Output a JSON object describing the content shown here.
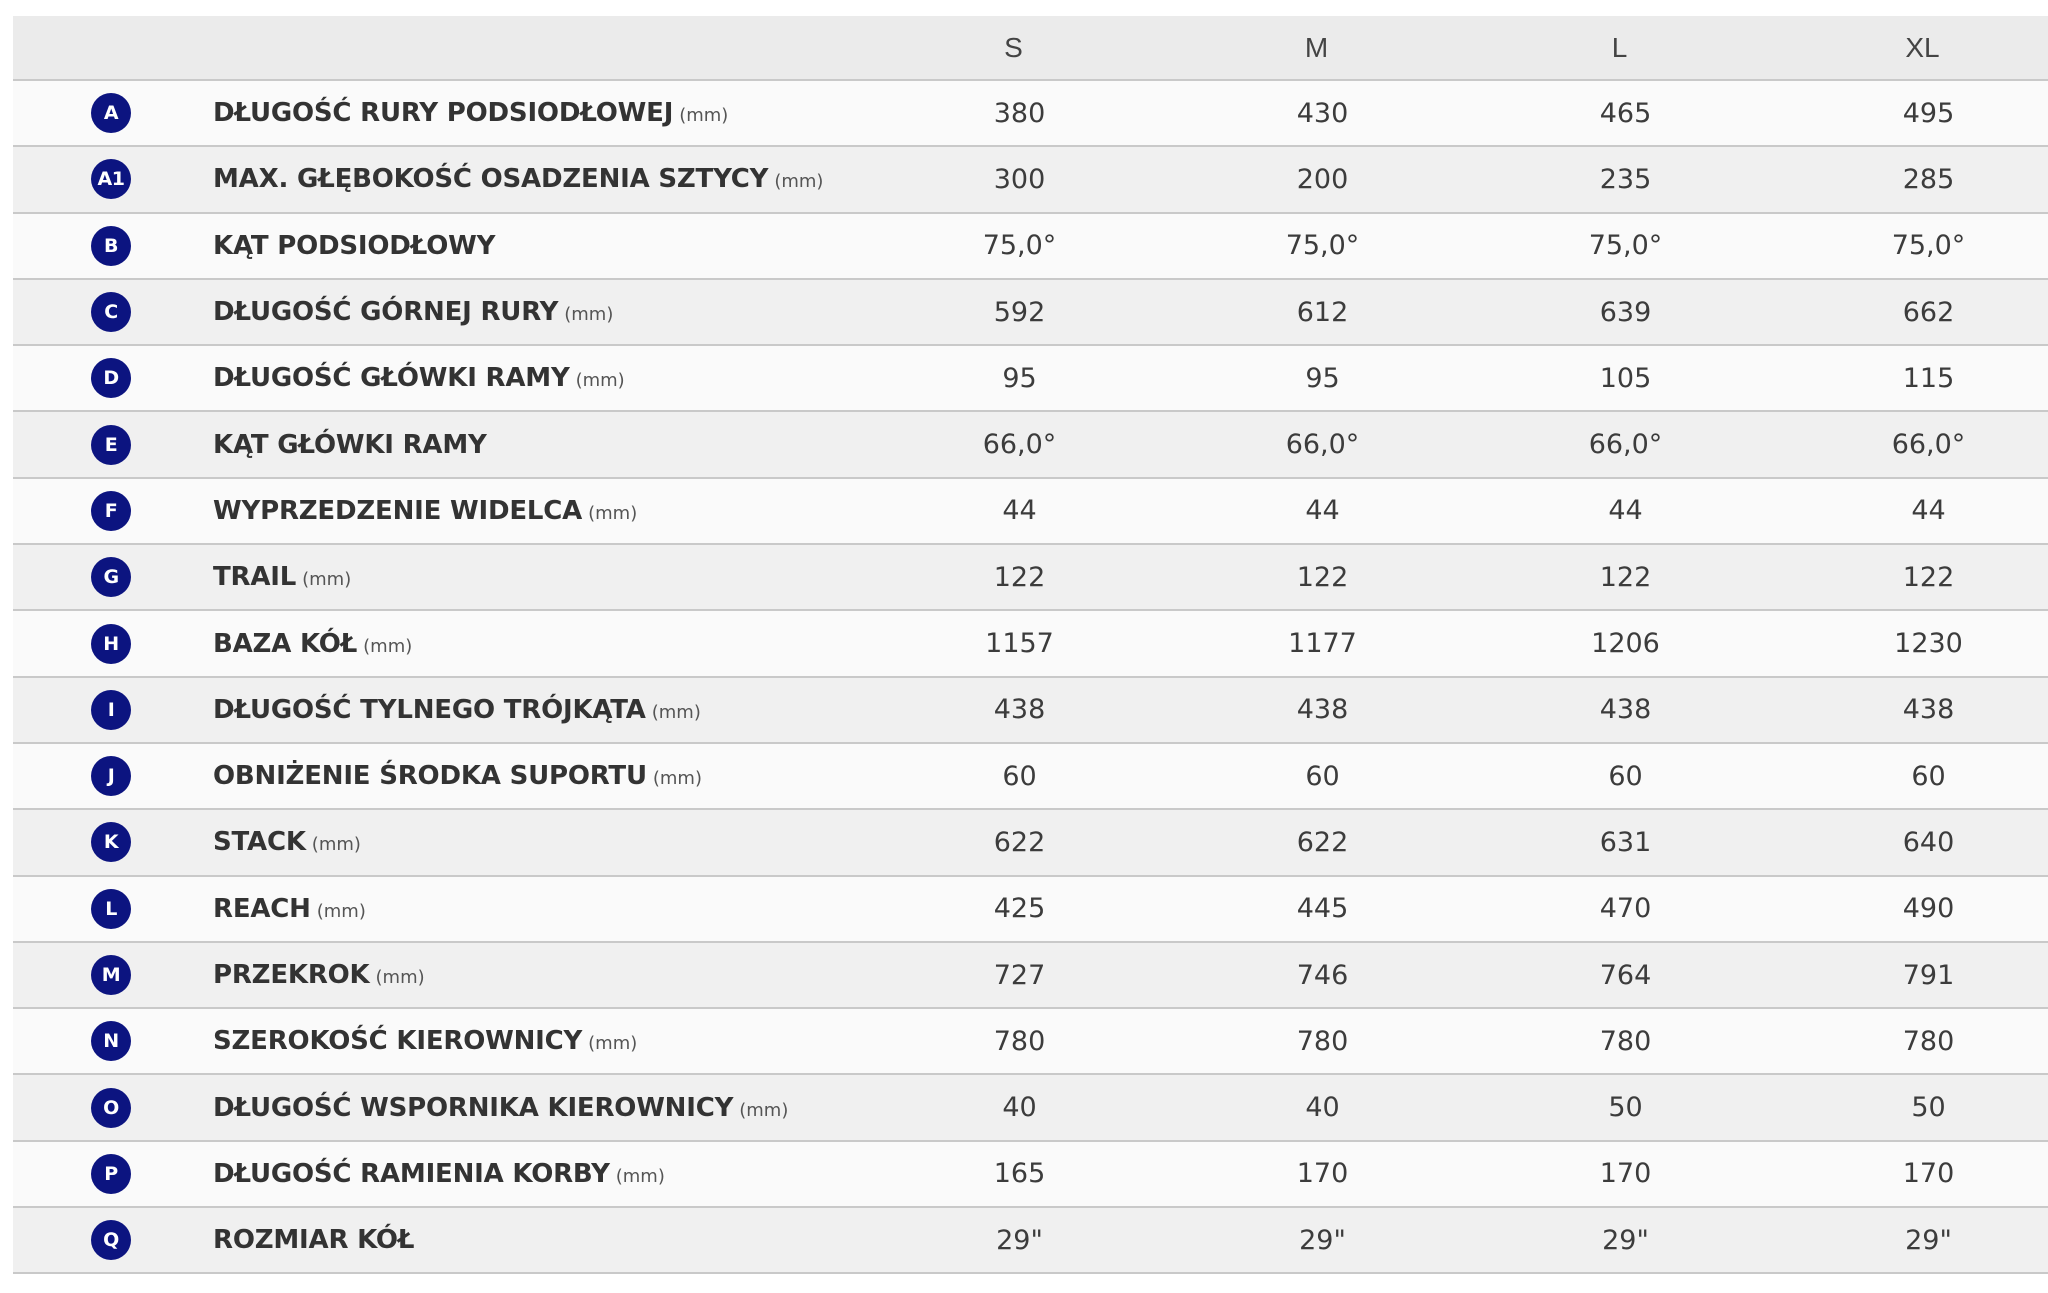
{
  "header": {
    "sizes": [
      "S",
      "M",
      "L",
      "XL"
    ]
  },
  "rows": [
    {
      "badge": "A",
      "label": "DŁUGOŚĆ RURY PODSIODŁOWEJ",
      "unit": "(mm)",
      "values": [
        "380",
        "430",
        "465",
        "495"
      ]
    },
    {
      "badge": "A1",
      "label": "MAX. GŁĘBOKOŚĆ OSADZENIA SZTYCY",
      "unit": "(mm)",
      "values": [
        "300",
        "200",
        "235",
        "285"
      ]
    },
    {
      "badge": "B",
      "label": "KĄT PODSIODŁOWY",
      "unit": "",
      "values": [
        "75,0°",
        "75,0°",
        "75,0°",
        "75,0°"
      ]
    },
    {
      "badge": "C",
      "label": "DŁUGOŚĆ GÓRNEJ RURY",
      "unit": "(mm)",
      "values": [
        "592",
        "612",
        "639",
        "662"
      ]
    },
    {
      "badge": "D",
      "label": "DŁUGOŚĆ GŁÓWKI RAMY",
      "unit": "(mm)",
      "values": [
        "95",
        "95",
        "105",
        "115"
      ]
    },
    {
      "badge": "E",
      "label": "KĄT GŁÓWKI RAMY",
      "unit": "",
      "values": [
        "66,0°",
        "66,0°",
        "66,0°",
        "66,0°"
      ]
    },
    {
      "badge": "F",
      "label": "WYPRZEDZENIE WIDELCA",
      "unit": "(mm)",
      "values": [
        "44",
        "44",
        "44",
        "44"
      ]
    },
    {
      "badge": "G",
      "label": "TRAIL",
      "unit": "(mm)",
      "values": [
        "122",
        "122",
        "122",
        "122"
      ]
    },
    {
      "badge": "H",
      "label": "BAZA KÓŁ",
      "unit": "(mm)",
      "values": [
        "1157",
        "1177",
        "1206",
        "1230"
      ]
    },
    {
      "badge": "I",
      "label": "DŁUGOŚĆ TYLNEGO TRÓJKĄTA",
      "unit": "(mm)",
      "values": [
        "438",
        "438",
        "438",
        "438"
      ]
    },
    {
      "badge": "J",
      "label": "OBNIŻENIE ŚRODKA SUPORTU",
      "unit": "(mm)",
      "values": [
        "60",
        "60",
        "60",
        "60"
      ]
    },
    {
      "badge": "K",
      "label": "STACK",
      "unit": "(mm)",
      "values": [
        "622",
        "622",
        "631",
        "640"
      ]
    },
    {
      "badge": "L",
      "label": "REACH",
      "unit": "(mm)",
      "values": [
        "425",
        "445",
        "470",
        "490"
      ]
    },
    {
      "badge": "M",
      "label": "PRZEKROK",
      "unit": "(mm)",
      "values": [
        "727",
        "746",
        "764",
        "791"
      ]
    },
    {
      "badge": "N",
      "label": "SZEROKOŚĆ KIEROWNICY",
      "unit": "(mm)",
      "values": [
        "780",
        "780",
        "780",
        "780"
      ]
    },
    {
      "badge": "O",
      "label": "DŁUGOŚĆ WSPORNIKA KIEROWNICY",
      "unit": "(mm)",
      "values": [
        "40",
        "40",
        "50",
        "50"
      ]
    },
    {
      "badge": "P",
      "label": "DŁUGOŚĆ RAMIENIA KORBY",
      "unit": "(mm)",
      "values": [
        "165",
        "170",
        "170",
        "170"
      ]
    },
    {
      "badge": "Q",
      "label": "ROZMIAR KÓŁ",
      "unit": "",
      "values": [
        "29\"",
        "29\"",
        "29\"",
        "29\""
      ]
    }
  ],
  "colors": {
    "badge_background": "#0c1480",
    "header_background": "#ebebeb",
    "row_odd": "#fafafa",
    "row_even": "#f0f0f0",
    "divider": "#c9c9c9"
  }
}
